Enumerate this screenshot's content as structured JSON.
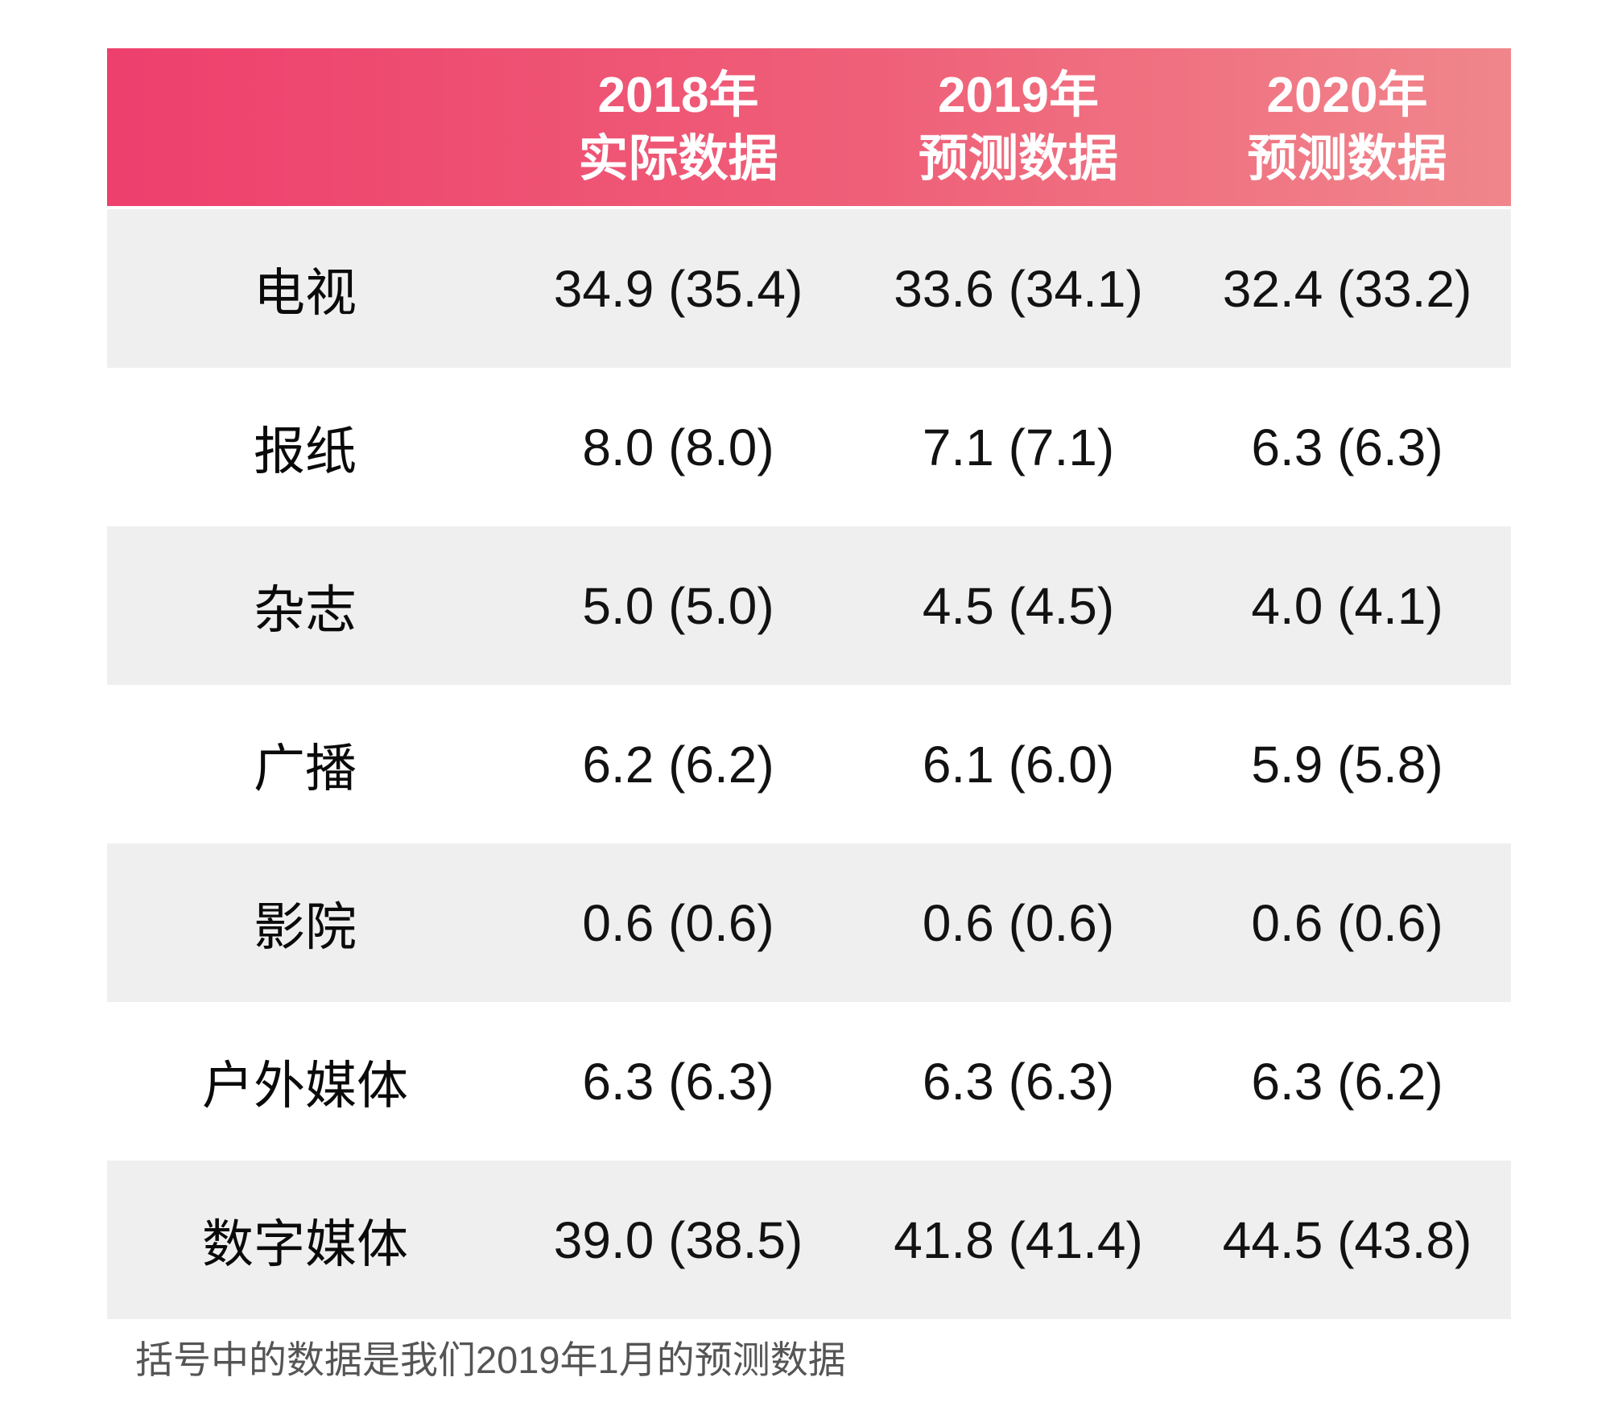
{
  "chart_data": {
    "type": "table",
    "title": "",
    "columns": [
      "",
      "2018年 实际数据",
      "2019年 预测数据",
      "2020年 预测数据"
    ],
    "categories": [
      "电视",
      "报纸",
      "杂志",
      "广播",
      "影院",
      "户外媒体",
      "数字媒体"
    ],
    "series": [
      {
        "name": "2018年 实际数据",
        "values": [
          34.9,
          8.0,
          5.0,
          6.2,
          0.6,
          6.3,
          39.0
        ],
        "jan2019_forecast_in_parentheses": [
          35.4,
          8.0,
          5.0,
          6.2,
          0.6,
          6.3,
          38.5
        ]
      },
      {
        "name": "2019年 预测数据",
        "values": [
          33.6,
          7.1,
          4.5,
          6.1,
          0.6,
          6.3,
          41.8
        ],
        "jan2019_forecast_in_parentheses": [
          34.1,
          7.1,
          4.5,
          6.0,
          0.6,
          6.3,
          41.4
        ]
      },
      {
        "name": "2020年 预测数据",
        "values": [
          32.4,
          6.3,
          4.0,
          5.9,
          0.6,
          6.3,
          44.5
        ],
        "jan2019_forecast_in_parentheses": [
          33.2,
          6.3,
          4.1,
          5.8,
          0.6,
          6.2,
          43.8
        ]
      }
    ],
    "note": "括号中的数据是我们2019年1月的预测数据",
    "layout": "alternating row shading, header gradient band, no gridlines"
  },
  "table": {
    "header": [
      {
        "line1": "2018年",
        "line2": "实际数据"
      },
      {
        "line1": "2019年",
        "line2": "预测数据"
      },
      {
        "line1": "2020年",
        "line2": "预测数据"
      }
    ],
    "rows": [
      {
        "label": "电视",
        "cells": [
          "34.9 (35.4)",
          "33.6 (34.1)",
          "32.4 (33.2)"
        ]
      },
      {
        "label": "报纸",
        "cells": [
          "8.0 (8.0)",
          "7.1 (7.1)",
          "6.3 (6.3)"
        ]
      },
      {
        "label": "杂志",
        "cells": [
          "5.0 (5.0)",
          "4.5 (4.5)",
          "4.0 (4.1)"
        ]
      },
      {
        "label": "广播",
        "cells": [
          "6.2 (6.2)",
          "6.1 (6.0)",
          "5.9 (5.8)"
        ]
      },
      {
        "label": "影院",
        "cells": [
          "0.6 (0.6)",
          "0.6 (0.6)",
          "0.6 (0.6)"
        ]
      },
      {
        "label": "户外媒体",
        "cells": [
          "6.3 (6.3)",
          "6.3 (6.3)",
          "6.3 (6.2)"
        ]
      },
      {
        "label": "数字媒体",
        "cells": [
          "39.0 (38.5)",
          "41.8 (41.4)",
          "44.5 (43.8)"
        ]
      }
    ],
    "footnote": "括号中的数据是我们2019年1月的预测数据"
  },
  "colors": {
    "header_gradient_left": "#ee3f6d",
    "header_gradient_right": "#f0868c",
    "header_text": "#ffffff",
    "row_shade": "#efefef",
    "row_plain": "#ffffff",
    "data_text": "#121212",
    "footnote_text": "#555555"
  }
}
